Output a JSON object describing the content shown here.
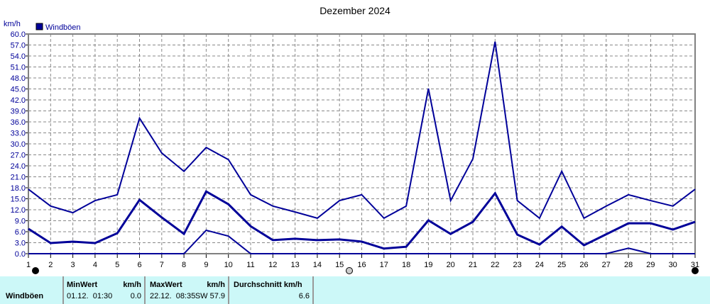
{
  "chart_data": {
    "type": "line",
    "title": "Dezember 2024",
    "ylabel": "km/h",
    "legend": [
      "Windböen"
    ],
    "legend_placement": "top-left",
    "ylim": [
      0,
      60
    ],
    "y_ticks": [
      "0.0",
      "3.0",
      "6.0",
      "9.0",
      "12.0",
      "15.0",
      "18.0",
      "21.0",
      "24.0",
      "27.0",
      "30.0",
      "33.0",
      "36.0",
      "39.0",
      "42.0",
      "45.0",
      "48.0",
      "51.0",
      "54.0",
      "57.0",
      "60.0"
    ],
    "x": [
      1,
      2,
      3,
      4,
      5,
      6,
      7,
      8,
      9,
      10,
      11,
      12,
      13,
      14,
      15,
      16,
      17,
      18,
      19,
      20,
      21,
      22,
      23,
      24,
      25,
      26,
      27,
      28,
      29,
      30,
      31
    ],
    "grid": true,
    "color": "#000099",
    "series": [
      {
        "values": [
          17.6,
          13.0,
          11.2,
          14.5,
          16.1,
          37.0,
          27.5,
          22.5,
          29.0,
          25.7,
          16.1,
          13.0,
          11.4,
          9.7,
          14.5,
          16.1,
          9.7,
          13.0,
          45.1,
          14.5,
          25.9,
          57.9,
          14.5,
          9.7,
          22.5,
          9.7,
          13.0,
          16.1,
          14.5,
          13.0,
          17.6
        ]
      },
      {
        "values": [
          6.8,
          2.9,
          3.3,
          2.9,
          5.6,
          14.7,
          9.9,
          5.4,
          17.0,
          13.5,
          7.5,
          3.7,
          4.1,
          3.7,
          3.9,
          3.3,
          1.4,
          1.9,
          9.1,
          5.4,
          8.7,
          16.5,
          5.2,
          2.5,
          7.4,
          2.3,
          5.3,
          8.3,
          8.3,
          6.6,
          8.7
        ]
      },
      {
        "values": [
          0,
          0,
          0,
          0,
          0,
          0,
          0,
          0,
          6.4,
          4.8,
          0,
          0,
          0,
          0,
          0,
          0,
          0,
          0,
          0,
          0,
          0,
          0,
          0,
          0,
          0,
          0,
          0,
          1.5,
          0,
          0,
          0
        ]
      }
    ]
  },
  "table": {
    "row_label": "Windböen",
    "min_header": "MinWert",
    "min_unit": "km/h",
    "min_time": "01.12.  01:30",
    "min_value": "0.0",
    "max_header": "MaxWert",
    "max_unit": "km/h",
    "max_time": "22.12.  08:35",
    "max_value": "SW 57.9",
    "avg_header": "Durchschnitt km/h",
    "avg_value": "6.6"
  }
}
